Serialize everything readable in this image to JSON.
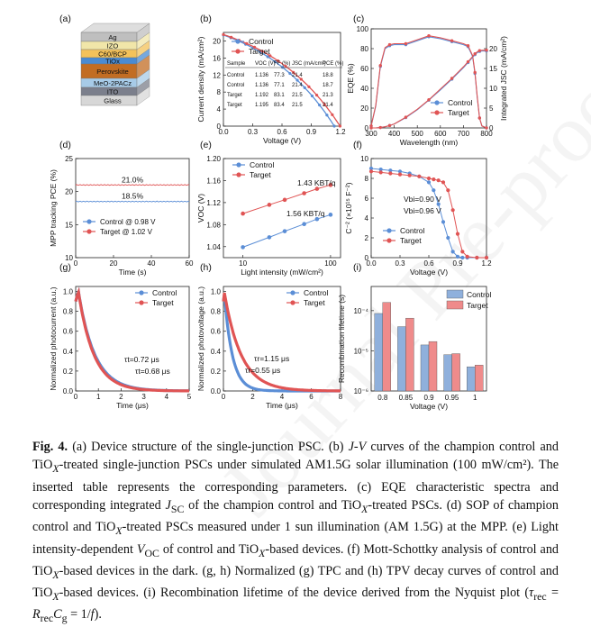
{
  "watermark": "Journal Pre-proofs",
  "colors": {
    "control": "#5b8ed6",
    "target": "#e05454",
    "ctrl_bar": "#8fb0dc",
    "tgt_bar": "#ef8b8b"
  },
  "panels": {
    "a": {
      "label": "(a)",
      "layers": [
        "Ag",
        "IZO",
        "C60/BCP",
        "TiOx",
        "Perovskite",
        "MeO-2PACz",
        "ITO",
        "Glass"
      ]
    },
    "b": {
      "label": "(b)"
    },
    "c": {
      "label": "(c)"
    },
    "d": {
      "label": "(d)"
    },
    "e": {
      "label": "(e)"
    },
    "f": {
      "label": "(f)"
    },
    "g": {
      "label": "(g)"
    },
    "h": {
      "label": "(h)"
    },
    "i": {
      "label": "(i)"
    }
  },
  "chart_data": [
    {
      "id": "b",
      "type": "line",
      "title": "",
      "xlabel": "Voltage (V)",
      "ylabel": "Current density (mA/cm²)",
      "xlim": [
        0,
        1.2
      ],
      "ylim": [
        0,
        22
      ],
      "xticks": [
        "0.0",
        "0.3",
        "0.6",
        "0.9",
        "1.2"
      ],
      "yticks": [
        "0",
        "4",
        "8",
        "12",
        "16",
        "20"
      ],
      "legend": [
        "Control",
        "Target"
      ],
      "series": [
        {
          "name": "Control",
          "jsc": 21.4,
          "voc": 1.136
        },
        {
          "name": "Target",
          "jsc": 21.5,
          "voc": 1.195
        }
      ],
      "table": {
        "headers": [
          "Sample",
          "VOC (V)",
          "FF (%)",
          "JSC (mA/cm²)",
          "PCE (%)"
        ],
        "rows": [
          [
            "Control",
            "1.136",
            "77.3",
            "21.4",
            "18.8"
          ],
          [
            "Control",
            "1.136",
            "77.1",
            "21.4",
            "18.7"
          ],
          [
            "Target",
            "1.192",
            "83.1",
            "21.5",
            "21.3"
          ],
          [
            "Target",
            "1.195",
            "83.4",
            "21.5",
            "21.4"
          ]
        ]
      }
    },
    {
      "id": "c",
      "type": "line",
      "xlabel": "Wavelength (nm)",
      "ylabel": "EQE (%)",
      "y2label": "Integrated JSC (mA/cm²)",
      "xlim": [
        300,
        800
      ],
      "ylim": [
        0,
        100
      ],
      "y2lim": [
        0,
        25
      ],
      "xticks": [
        "300",
        "400",
        "500",
        "600",
        "700",
        "800"
      ],
      "yticks": [
        "0",
        "20",
        "40",
        "60",
        "80",
        "100"
      ],
      "y2ticks": [
        "0",
        "5",
        "10",
        "15",
        "20"
      ],
      "legend": [
        "Control",
        "Target"
      ],
      "x": [
        300,
        320,
        340,
        360,
        380,
        400,
        450,
        500,
        550,
        600,
        650,
        700,
        720,
        740,
        750,
        760,
        770,
        780,
        800
      ],
      "series": [
        {
          "name": "Control EQE",
          "values": [
            2,
            22,
            62,
            80,
            83,
            84,
            84,
            88,
            92,
            90,
            87,
            84,
            82,
            72,
            55,
            30,
            10,
            2,
            0
          ]
        },
        {
          "name": "Target EQE",
          "values": [
            2,
            23,
            63,
            81,
            84,
            85,
            85,
            89,
            93,
            91,
            88,
            85,
            83,
            73,
            56,
            31,
            10,
            2,
            0
          ]
        },
        {
          "name": "Control JSC",
          "values": [
            0,
            0,
            0.1,
            0.3,
            0.6,
            1.0,
            2.6,
            4.6,
            7.0,
            9.6,
            12.3,
            15.2,
            16.5,
            17.8,
            18.5,
            19.0,
            19.3,
            19.4,
            19.4
          ]
        },
        {
          "name": "Target JSC",
          "values": [
            0,
            0,
            0.1,
            0.3,
            0.6,
            1.0,
            2.7,
            4.7,
            7.1,
            9.8,
            12.5,
            15.4,
            16.7,
            18.0,
            18.7,
            19.2,
            19.5,
            19.6,
            19.6
          ]
        }
      ]
    },
    {
      "id": "d",
      "type": "line",
      "xlabel": "Time (s)",
      "ylabel": "MPP tracking PCE (%)",
      "xlim": [
        0,
        60
      ],
      "ylim": [
        10,
        25
      ],
      "xticks": [
        "0",
        "20",
        "40",
        "60"
      ],
      "yticks": [
        "10",
        "15",
        "20",
        "25"
      ],
      "series": [
        {
          "name": "Control @ 0.98 V",
          "value": 18.5,
          "label": "18.5%"
        },
        {
          "name": "Target @ 1.02 V",
          "value": 21.0,
          "label": "21.0%"
        }
      ]
    },
    {
      "id": "e",
      "type": "scatter",
      "xlabel": "Light intensity (mW/cm²)",
      "ylabel": "VOC (V)",
      "xscale": "log",
      "xlim": [
        6,
        130
      ],
      "ylim": [
        1.02,
        1.2
      ],
      "xticks": [
        "10",
        "100"
      ],
      "yticks": [
        "1.04",
        "1.08",
        "1.12",
        "1.16",
        "1.20"
      ],
      "legend": [
        "Control",
        "Target"
      ],
      "x": [
        10,
        20,
        30,
        50,
        70,
        100
      ],
      "series": [
        {
          "name": "Control",
          "values": [
            1.039,
            1.057,
            1.068,
            1.081,
            1.09,
            1.098
          ],
          "annotation": "1.56 KBT/q"
        },
        {
          "name": "Target",
          "values": [
            1.1,
            1.116,
            1.125,
            1.137,
            1.145,
            1.152
          ],
          "annotation": "1.43 KBT/q"
        }
      ]
    },
    {
      "id": "f",
      "type": "scatter",
      "xlabel": "Voltage (V)",
      "ylabel": "C⁻² (×10¹⁵ F⁻²)",
      "xlim": [
        0.0,
        1.2
      ],
      "ylim": [
        0,
        10
      ],
      "xticks": [
        "0.0",
        "0.3",
        "0.6",
        "0.9",
        "1.2"
      ],
      "yticks": [
        "0",
        "2",
        "4",
        "6",
        "8",
        "10"
      ],
      "legend": [
        "Control",
        "Target"
      ],
      "x": [
        0.0,
        0.1,
        0.2,
        0.3,
        0.4,
        0.5,
        0.6,
        0.65,
        0.7,
        0.75,
        0.8,
        0.85,
        0.9,
        0.95,
        1.0,
        1.1,
        1.2
      ],
      "series": [
        {
          "name": "Control",
          "values": [
            9.0,
            8.9,
            8.8,
            8.7,
            8.5,
            8.2,
            7.6,
            6.8,
            5.4,
            3.6,
            2.0,
            0.6,
            0.1,
            0.0,
            0.0,
            0.0,
            0.0
          ],
          "vbi": "Vbi=0.90 V"
        },
        {
          "name": "Target",
          "values": [
            8.7,
            8.6,
            8.5,
            8.4,
            8.3,
            8.2,
            8.0,
            7.9,
            7.8,
            7.6,
            6.8,
            4.8,
            2.4,
            0.6,
            0.1,
            0.0,
            0.0
          ],
          "vbi": "Vbi=0.96 V"
        }
      ]
    },
    {
      "id": "g",
      "type": "line",
      "xlabel": "Time (μs)",
      "ylabel": "Normalized photocurrent (a.u.)",
      "xlim": [
        0,
        5
      ],
      "ylim": [
        0,
        1.05
      ],
      "xticks": [
        "0",
        "1",
        "2",
        "3",
        "4",
        "5"
      ],
      "yticks": [
        "0.0",
        "0.2",
        "0.4",
        "0.6",
        "0.8",
        "1.0"
      ],
      "legend": [
        "Control",
        "Target"
      ],
      "series": [
        {
          "name": "Control",
          "tau": 0.72,
          "label": "τt=0.72 μs"
        },
        {
          "name": "Target",
          "tau": 0.68,
          "label": "τt=0.68 μs"
        }
      ]
    },
    {
      "id": "h",
      "type": "line",
      "xlabel": "Time (μs)",
      "ylabel": "Normalized photovoltage (a.u.)",
      "xlim": [
        0,
        8
      ],
      "ylim": [
        0,
        1.05
      ],
      "xticks": [
        "0",
        "2",
        "4",
        "6",
        "8"
      ],
      "yticks": [
        "0.0",
        "0.2",
        "0.4",
        "0.6",
        "0.8",
        "1.0"
      ],
      "legend": [
        "Control",
        "Target"
      ],
      "series": [
        {
          "name": "Control",
          "tau": 0.55,
          "label": "τr=0.55 μs"
        },
        {
          "name": "Target",
          "tau": 1.15,
          "label": "τr=1.15 μs"
        }
      ]
    },
    {
      "id": "i",
      "type": "bar",
      "xlabel": "Voltage (V)",
      "ylabel": "Recombination lifetime (s)",
      "yscale": "log",
      "ylim": [
        1e-06,
        0.0004
      ],
      "categories": [
        "0.8",
        "0.85",
        "0.9",
        "0.95",
        "1"
      ],
      "yticks": [
        "10⁻⁶",
        "10⁻⁵",
        "10⁻⁴"
      ],
      "legend": [
        "Control",
        "Target"
      ],
      "series": [
        {
          "name": "Control",
          "values": [
            8.5e-05,
            4e-05,
            1.4e-05,
            8e-06,
            4e-06
          ]
        },
        {
          "name": "Target",
          "values": [
            0.00016,
            6.5e-05,
            1.7e-05,
            8.5e-06,
            4.4e-06
          ]
        }
      ]
    }
  ],
  "caption": {
    "fig_label": "Fig. 4.",
    "parts": [
      " (a) Device structure of the single-junction PSC. (b) ",
      "J-V",
      " curves of the champion control and TiO",
      "X",
      "-treated single-junction PSCs under simulated AM1.5G solar illumination (100 mW/cm²). The inserted table represents the corresponding parameters. (c) EQE characteristic spectra and corresponding integrated ",
      "J",
      "SC",
      " of the champion control and TiO",
      "X",
      "-treated PSCs. (d) SOP of champion control and TiO",
      "X",
      "-treated PSCs measured under 1 sun illumination (AM 1.5G) at the MPP. (e) Light intensity-dependent ",
      "V",
      "OC",
      " of control and TiO",
      "X",
      "-based devices. (f) Mott-Schottky analysis of control and TiO",
      "X",
      "-based devices in the dark. (g, h) Normalized (g) TPC and (h) TPV decay curves of control and TiO",
      "X",
      "-based devices. (i) Recombination lifetime of the device derived from the Nyquist plot (",
      "τ",
      "rec",
      " = ",
      "R",
      "rec",
      "C",
      "g",
      " = 1/",
      "f",
      ")."
    ]
  }
}
